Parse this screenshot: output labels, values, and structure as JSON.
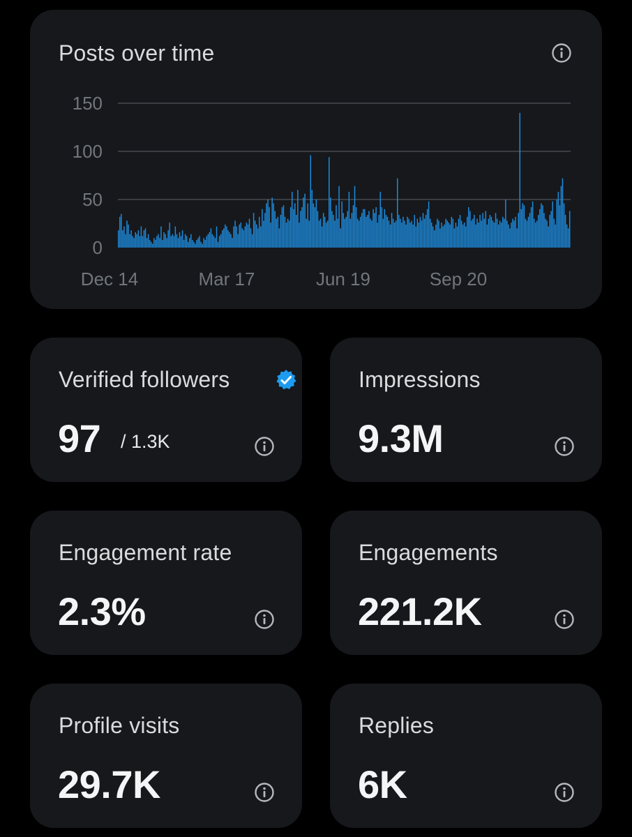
{
  "colors": {
    "background": "#000000",
    "card": "#16181c",
    "bar": "#1d8de0",
    "grid": "#3a3d42",
    "verified_badge": "#1d9bf0",
    "muted_text": "#71767b"
  },
  "chart_card": {
    "title": "Posts over time",
    "info_icon": "info-icon"
  },
  "chart_data": {
    "type": "bar",
    "title": "Posts over time",
    "xlabel": "",
    "ylabel": "",
    "ylim": [
      0,
      150
    ],
    "y_ticks": [
      "0",
      "50",
      "100",
      "150"
    ],
    "x_tick_labels": [
      "Dec 14",
      "Mar 17",
      "Jun 19",
      "Sep 20"
    ],
    "grid": true,
    "series": [
      {
        "values": [
          18,
          32,
          35,
          18,
          22,
          14,
          28,
          24,
          14,
          18,
          12,
          10,
          16,
          14,
          18,
          12,
          22,
          12,
          18,
          20,
          10,
          14,
          8,
          6,
          4,
          10,
          8,
          12,
          14,
          10,
          22,
          8,
          16,
          14,
          10,
          18,
          26,
          12,
          14,
          12,
          22,
          14,
          10,
          16,
          12,
          18,
          8,
          14,
          12,
          6,
          10,
          14,
          8,
          6,
          4,
          8,
          10,
          12,
          6,
          4,
          10,
          8,
          12,
          14,
          16,
          20,
          14,
          12,
          10,
          22,
          6,
          12,
          14,
          18,
          20,
          24,
          22,
          18,
          16,
          14,
          10,
          22,
          28,
          22,
          14,
          24,
          26,
          20,
          18,
          22,
          26,
          24,
          30,
          20,
          14,
          36,
          28,
          24,
          20,
          32,
          22,
          40,
          28,
          36,
          46,
          50,
          42,
          26,
          52,
          46,
          38,
          30,
          32,
          20,
          34,
          42,
          44,
          32,
          26,
          30,
          28,
          42,
          58,
          40,
          46,
          34,
          60,
          26,
          38,
          42,
          52,
          56,
          30,
          46,
          28,
          96,
          60,
          46,
          42,
          50,
          38,
          28,
          30,
          22,
          36,
          32,
          26,
          28,
          94,
          52,
          38,
          34,
          28,
          44,
          30,
          64,
          20,
          48,
          36,
          30,
          32,
          38,
          58,
          30,
          36,
          44,
          64,
          42,
          30,
          28,
          32,
          36,
          40,
          40,
          32,
          34,
          38,
          30,
          28,
          40,
          36,
          42,
          26,
          34,
          58,
          42,
          30,
          40,
          34,
          32,
          28,
          24,
          36,
          30,
          26,
          28,
          72,
          34,
          30,
          26,
          32,
          28,
          24,
          32,
          30,
          26,
          28,
          24,
          34,
          22,
          30,
          26,
          32,
          28,
          36,
          30,
          34,
          40,
          48,
          30,
          26,
          22,
          18,
          24,
          30,
          28,
          20,
          26,
          22,
          24,
          30,
          28,
          26,
          24,
          32,
          30,
          20,
          26,
          22,
          30,
          34,
          28,
          24,
          26,
          22,
          32,
          42,
          38,
          28,
          30,
          34,
          24,
          30,
          26,
          34,
          28,
          36,
          30,
          38,
          24,
          30,
          34,
          32,
          28,
          26,
          36,
          30,
          24,
          28,
          26,
          32,
          30,
          50,
          28,
          24,
          20,
          26,
          30,
          28,
          32,
          20,
          36,
          140,
          40,
          46,
          44,
          30,
          28,
          32,
          36,
          42,
          48,
          30,
          26,
          28,
          34,
          40,
          46,
          44,
          36,
          30,
          28,
          22,
          34,
          38,
          48,
          30,
          24,
          50,
          58,
          44,
          64,
          72,
          46,
          34,
          24,
          20,
          38
        ]
      }
    ]
  },
  "stats": [
    {
      "label": "Verified followers",
      "value": "97",
      "sub": "/ 1.3K",
      "verified_icon": "verified-badge-icon"
    },
    {
      "label": "Impressions",
      "value": "9.3M"
    },
    {
      "label": "Engagement rate",
      "value": "2.3%"
    },
    {
      "label": "Engagements",
      "value": "221.2K"
    },
    {
      "label": "Profile visits",
      "value": "29.7K"
    },
    {
      "label": "Replies",
      "value": "6K"
    }
  ]
}
